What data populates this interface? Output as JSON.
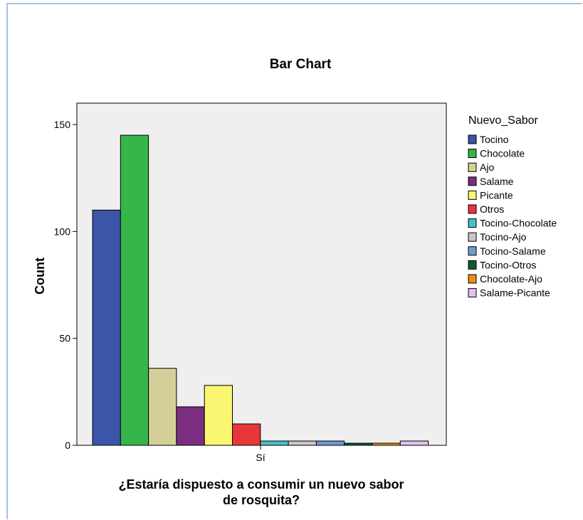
{
  "chart_data": {
    "type": "bar",
    "title": "Bar Chart",
    "xlabel": "¿Estaría dispuesto a consumir un nuevo sabor de rosquita?",
    "xlabel_lines": [
      "¿Estaría dispuesto a consumir un nuevo sabor",
      "de rosquita?"
    ],
    "ylabel": "Count",
    "ylim": [
      0,
      160
    ],
    "yticks": [
      0,
      50,
      100,
      150
    ],
    "categories": [
      "Sí"
    ],
    "legend_title": "Nuevo_Sabor",
    "legend_position": "right",
    "grid": false,
    "series": [
      {
        "name": "Tocino",
        "values": [
          110
        ],
        "color": "#3d55a8"
      },
      {
        "name": "Chocolate",
        "values": [
          145
        ],
        "color": "#36b54a"
      },
      {
        "name": "Ajo",
        "values": [
          36
        ],
        "color": "#d4cf98"
      },
      {
        "name": "Salame",
        "values": [
          18
        ],
        "color": "#7b2d80"
      },
      {
        "name": "Picante",
        "values": [
          28
        ],
        "color": "#faf572"
      },
      {
        "name": "Otros",
        "values": [
          10
        ],
        "color": "#e7363a"
      },
      {
        "name": "Tocino-Chocolate",
        "values": [
          2
        ],
        "color": "#48c1c3"
      },
      {
        "name": "Tocino-Ajo",
        "values": [
          2
        ],
        "color": "#c8c8c8"
      },
      {
        "name": "Tocino-Salame",
        "values": [
          2
        ],
        "color": "#6f9ad5"
      },
      {
        "name": "Tocino-Otros",
        "values": [
          1
        ],
        "color": "#0d5c2f"
      },
      {
        "name": "Chocolate-Ajo",
        "values": [
          1
        ],
        "color": "#ee8a1e"
      },
      {
        "name": "Salame-Picante",
        "values": [
          2
        ],
        "color": "#e2c2f0"
      }
    ]
  }
}
